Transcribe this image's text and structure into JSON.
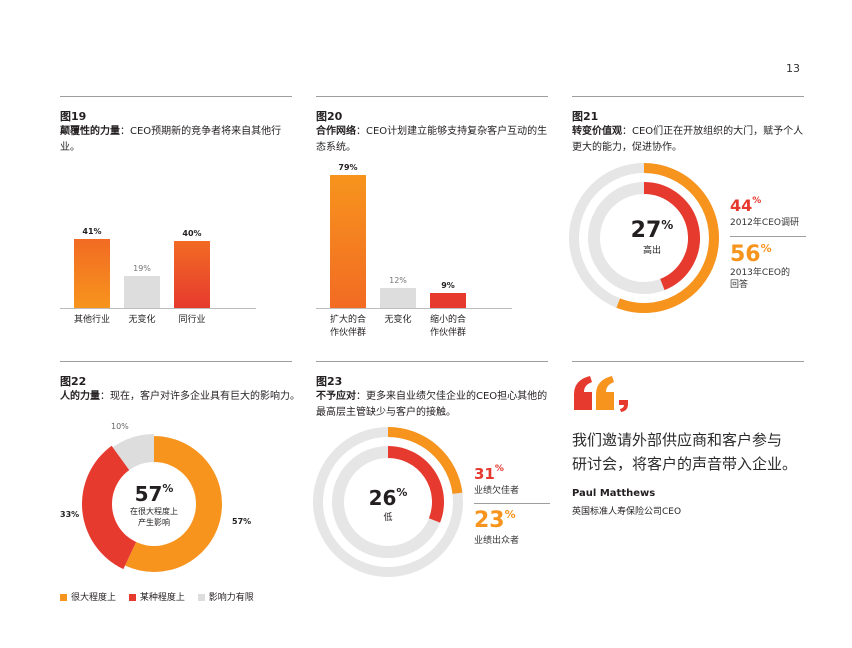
{
  "page_number": "13",
  "colors": {
    "orange": "#f7941d",
    "red": "#e63a2f",
    "gray": "#dddddd",
    "pink": "#f28f8f",
    "light_gray": "#e6e6e6"
  },
  "fig19": {
    "number": "图19",
    "title_bold": "颠覆性的力量",
    "title_rest": "：CEO预期新的竞争者将来自其他行业。",
    "chart_data": {
      "type": "bar",
      "categories": [
        "其他行业",
        "无变化",
        "同行业"
      ],
      "values": [
        41,
        19,
        40
      ],
      "value_labels": [
        "41%",
        "19%",
        "40%"
      ],
      "ylim": [
        0,
        100
      ]
    }
  },
  "fig20": {
    "number": "图20",
    "title_bold": "合作网络",
    "title_rest": "：CEO计划建立能够支持复杂客户互动的生态系统。",
    "chart_data": {
      "type": "bar",
      "categories": [
        "扩大的合作伙伴群",
        "无变化",
        "缩小的合作伙伴群"
      ],
      "category_lines": [
        [
          "扩大的合",
          "作伙伴群"
        ],
        [
          "无变化"
        ],
        [
          "缩小的合",
          "作伙伴群"
        ]
      ],
      "values": [
        79,
        12,
        9
      ],
      "value_labels": [
        "79%",
        "12%",
        "9%"
      ],
      "ylim": [
        0,
        100
      ]
    }
  },
  "fig21": {
    "number": "图21",
    "title_bold": "转变价值观",
    "title_rest": "：CEO们正在开放组织的大门，赋予个人更大的能力，促进协作。",
    "center_value": "27",
    "center_pct": "%",
    "center_label": "高出",
    "legend1_value": "44",
    "legend1_label": "2012年CEO调研",
    "legend2_value": "56",
    "legend2_label_lines": [
      "2013年CEO的",
      "回答"
    ],
    "chart_data": {
      "type": "pie",
      "series": [
        {
          "name": "2012年CEO调研",
          "value": 44
        },
        {
          "name": "2013年CEO的回答",
          "value": 56
        }
      ]
    }
  },
  "fig22": {
    "number": "图22",
    "title_bold": "人的力量",
    "title_rest": "：现在，客户对许多企业具有巨大的影响力。",
    "center_value": "57",
    "center_pct": "%",
    "center_label_lines": [
      "在很大程度上",
      "产生影响"
    ],
    "labels": [
      "10%",
      "33%",
      "57%"
    ],
    "legend": [
      "很大程度上",
      "某种程度上",
      "影响力有限"
    ],
    "chart_data": {
      "type": "pie",
      "series": [
        {
          "name": "很大程度上",
          "value": 57
        },
        {
          "name": "某种程度上",
          "value": 33
        },
        {
          "name": "影响力有限",
          "value": 10
        }
      ]
    }
  },
  "fig23": {
    "number": "图23",
    "title_bold": "不予应对",
    "title_rest": "：更多来自业绩欠佳企业的CEO担心其他的最高层主管缺少与客户的接触。",
    "center_value": "26",
    "center_pct": "%",
    "center_label": "低",
    "legend1_value": "31",
    "legend1_label": "业绩欠佳者",
    "legend2_value": "23",
    "legend2_label": "业绩出众者",
    "chart_data": {
      "type": "pie",
      "series": [
        {
          "name": "业绩欠佳者",
          "value": 31
        },
        {
          "name": "业绩出众者",
          "value": 23
        }
      ]
    }
  },
  "quote": {
    "lines": [
      "我们邀请外部供应商和客户参与",
      "研讨会，将客户的声音带入企业。"
    ],
    "author": "Paul Matthews",
    "author_title": "英国标准人寿保险公司CEO"
  }
}
